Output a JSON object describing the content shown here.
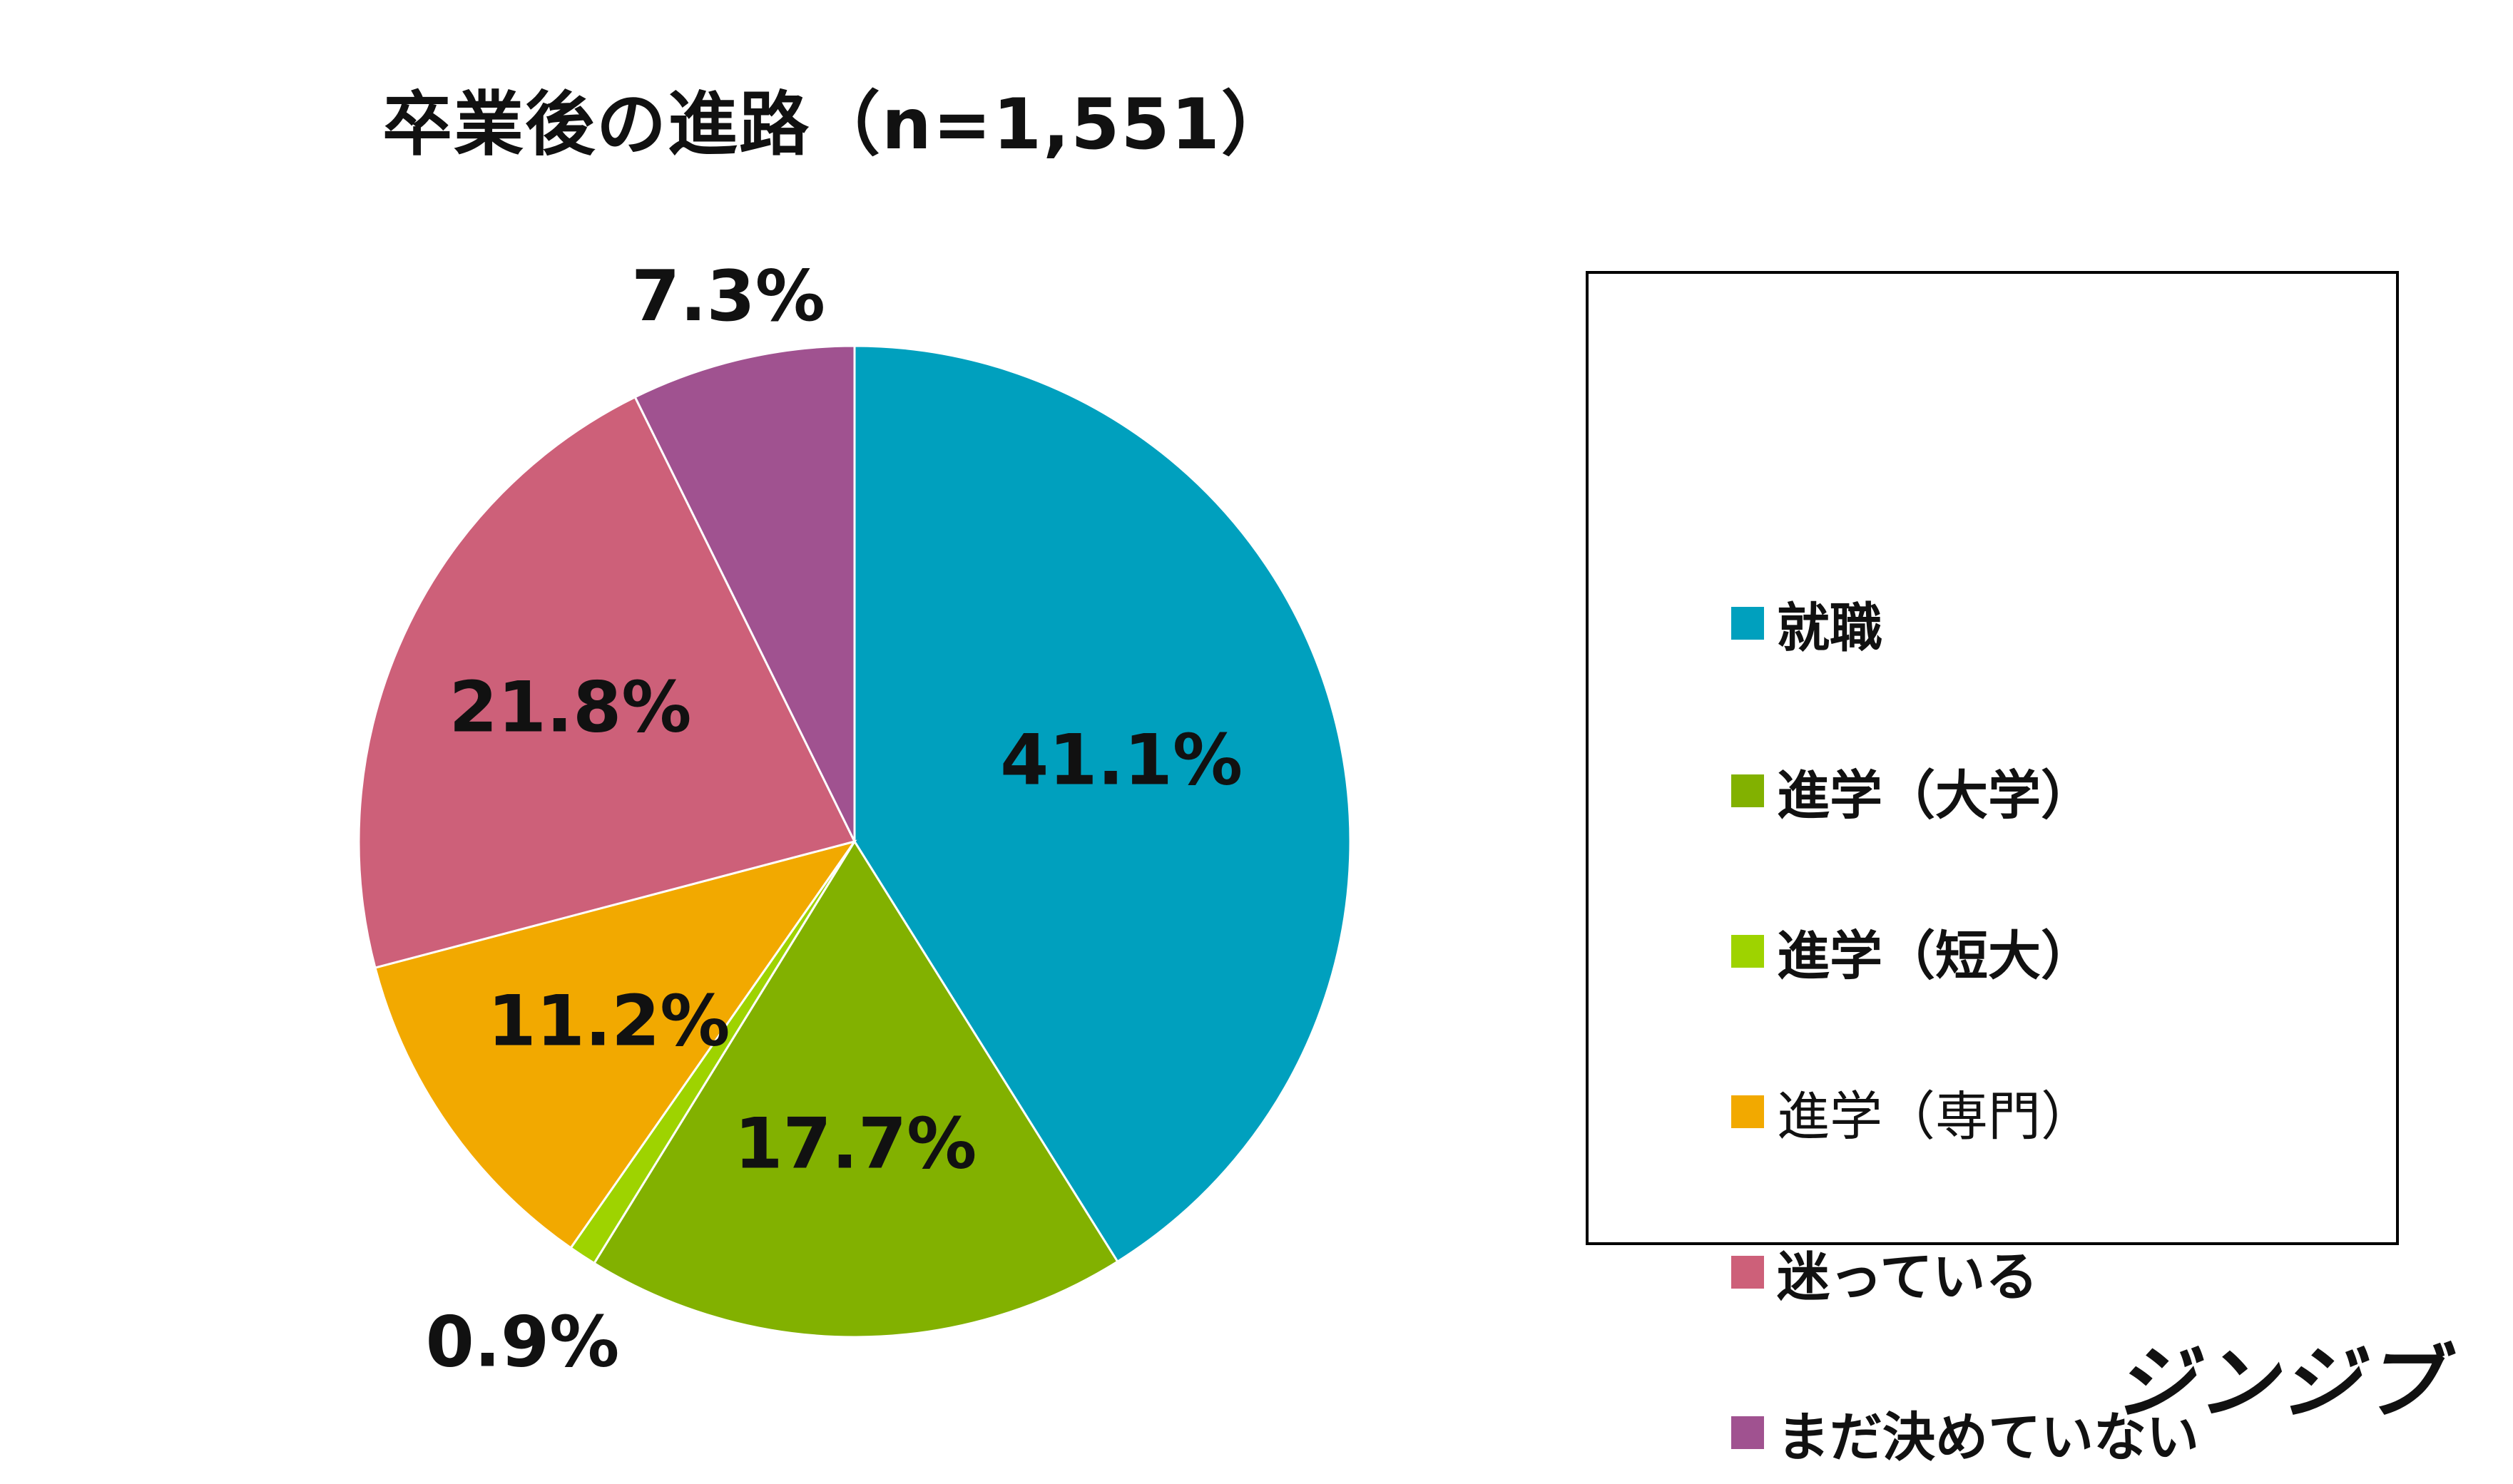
{
  "chart_data": {
    "type": "pie",
    "title": "卒業後の進路（n=1,551）",
    "start_angle_deg": 0,
    "direction": "clockwise",
    "slices": [
      {
        "label": "就職",
        "value": 41.1,
        "value_label": "41.1%",
        "color": "#00A0BE"
      },
      {
        "label": "進学（大学）",
        "value": 17.7,
        "value_label": "17.7%",
        "color": "#82B100"
      },
      {
        "label": "進学（短大）",
        "value": 0.9,
        "value_label": "0.9%",
        "color": "#9ED300"
      },
      {
        "label": "進学（専門）",
        "value": 11.2,
        "value_label": "11.2%",
        "color": "#F2A900"
      },
      {
        "label": "迷っている",
        "value": 21.8,
        "value_label": "21.8%",
        "color": "#CD6079"
      },
      {
        "label": "まだ決めていない",
        "value": 7.3,
        "value_label": "7.3%",
        "color": "#A05290"
      }
    ],
    "legend_position": "right"
  },
  "brand": "ジンジブ"
}
